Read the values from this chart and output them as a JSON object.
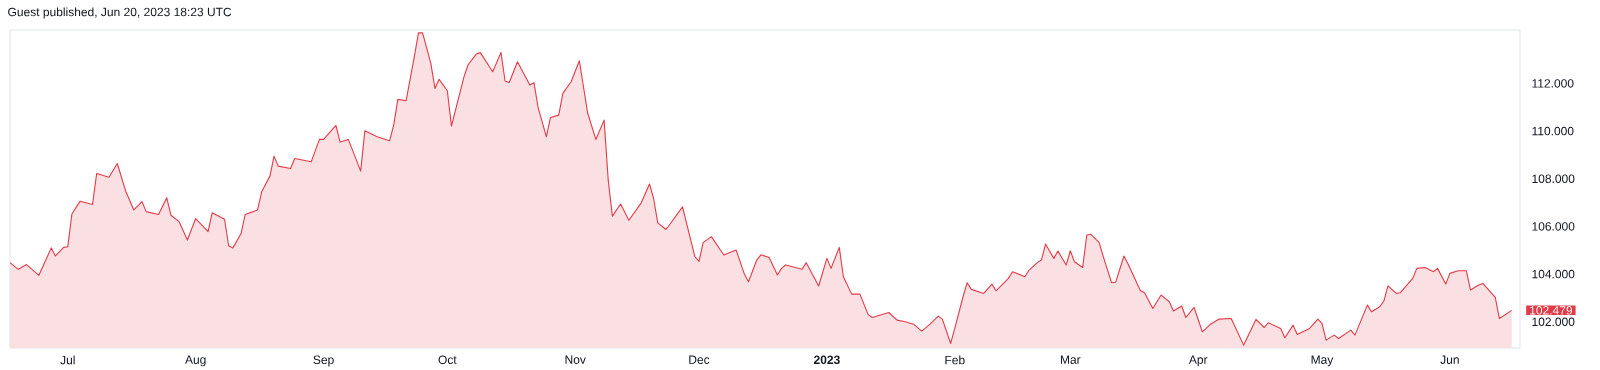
{
  "chart_data": {
    "type": "area",
    "title": "Guest published, Jun 20, 2023 18:23 UTC",
    "color": "#e23b48",
    "x": [
      "2022-06-17",
      "2022-06-19",
      "2022-06-21",
      "2022-06-24",
      "2022-06-27",
      "2022-06-28",
      "2022-06-30",
      "2022-07-01",
      "2022-07-02",
      "2022-07-04",
      "2022-07-07",
      "2022-07-08",
      "2022-07-11",
      "2022-07-13",
      "2022-07-15",
      "2022-07-17",
      "2022-07-19",
      "2022-07-20",
      "2022-07-23",
      "2022-07-25",
      "2022-07-26",
      "2022-07-28",
      "2022-07-30",
      "2022-08-01",
      "2022-08-04",
      "2022-08-05",
      "2022-08-08",
      "2022-08-09",
      "2022-08-10",
      "2022-08-12",
      "2022-08-13",
      "2022-08-16",
      "2022-08-17",
      "2022-08-19",
      "2022-08-20",
      "2022-08-21",
      "2022-08-24",
      "2022-08-25",
      "2022-08-29",
      "2022-08-31",
      "2022-09-01",
      "2022-09-04",
      "2022-09-05",
      "2022-09-07",
      "2022-09-10",
      "2022-09-11",
      "2022-09-14",
      "2022-09-17",
      "2022-09-18",
      "2022-09-19",
      "2022-09-21",
      "2022-09-23",
      "2022-09-24",
      "2022-09-25",
      "2022-09-27",
      "2022-09-28",
      "2022-09-29",
      "2022-10-01",
      "2022-10-02",
      "2022-10-05",
      "2022-10-06",
      "2022-10-08",
      "2022-10-09",
      "2022-10-12",
      "2022-10-14",
      "2022-10-15",
      "2022-10-16",
      "2022-10-18",
      "2022-10-21",
      "2022-10-22",
      "2022-10-23",
      "2022-10-25",
      "2022-10-26",
      "2022-10-28",
      "2022-10-29",
      "2022-10-31",
      "2022-11-02",
      "2022-11-04",
      "2022-11-05",
      "2022-11-06",
      "2022-11-08",
      "2022-11-09",
      "2022-11-10",
      "2022-11-12",
      "2022-11-14",
      "2022-11-17",
      "2022-11-19",
      "2022-11-20",
      "2022-11-21",
      "2022-11-23",
      "2022-11-24",
      "2022-11-27",
      "2022-11-30",
      "2022-12-01",
      "2022-12-02",
      "2022-12-04",
      "2022-12-07",
      "2022-12-10",
      "2022-12-12",
      "2022-12-13",
      "2022-12-15",
      "2022-12-16",
      "2022-12-18",
      "2022-12-20",
      "2022-12-21",
      "2022-12-22",
      "2022-12-26",
      "2022-12-27",
      "2022-12-30",
      "2023-01-01",
      "2023-01-02",
      "2023-01-04",
      "2023-01-05",
      "2023-01-07",
      "2023-01-09",
      "2023-01-11",
      "2023-01-12",
      "2023-01-16",
      "2023-01-18",
      "2023-01-20",
      "2023-01-22",
      "2023-01-24",
      "2023-01-26",
      "2023-01-28",
      "2023-01-29",
      "2023-01-31",
      "2023-02-01",
      "2023-02-03",
      "2023-02-04",
      "2023-02-05",
      "2023-02-08",
      "2023-02-10",
      "2023-02-11",
      "2023-02-14",
      "2023-02-15",
      "2023-02-18",
      "2023-02-19",
      "2023-02-21",
      "2023-02-22",
      "2023-02-23",
      "2023-02-25",
      "2023-02-26",
      "2023-02-28",
      "2023-03-01",
      "2023-03-02",
      "2023-03-04",
      "2023-03-05",
      "2023-03-06",
      "2023-03-08",
      "2023-03-09",
      "2023-03-11",
      "2023-03-12",
      "2023-03-14",
      "2023-03-15",
      "2023-03-18",
      "2023-03-19",
      "2023-03-21",
      "2023-03-23",
      "2023-03-25",
      "2023-03-26",
      "2023-03-28",
      "2023-03-29",
      "2023-03-31",
      "2023-04-02",
      "2023-04-04",
      "2023-04-06",
      "2023-04-09",
      "2023-04-12",
      "2023-04-15",
      "2023-04-17",
      "2023-04-18",
      "2023-04-21",
      "2023-04-22",
      "2023-04-24",
      "2023-04-25",
      "2023-04-28",
      "2023-04-30",
      "2023-05-01",
      "2023-05-02",
      "2023-05-04",
      "2023-05-05",
      "2023-05-08",
      "2023-05-09",
      "2023-05-12",
      "2023-05-13",
      "2023-05-15",
      "2023-05-16",
      "2023-05-17",
      "2023-05-19",
      "2023-05-20",
      "2023-05-23",
      "2023-05-24",
      "2023-05-26",
      "2023-05-28",
      "2023-05-29",
      "2023-05-31",
      "2023-06-01",
      "2023-06-03",
      "2023-06-05",
      "2023-06-06",
      "2023-06-08",
      "2023-06-09",
      "2023-06-12",
      "2023-06-13",
      "2023-06-16"
    ],
    "values": [
      104.48,
      104.2,
      104.4,
      103.95,
      105.1,
      104.76,
      105.12,
      105.15,
      106.52,
      107.06,
      106.92,
      108.22,
      108.06,
      108.64,
      107.5,
      106.69,
      107.04,
      106.62,
      106.5,
      107.2,
      106.47,
      106.2,
      105.43,
      106.33,
      105.78,
      106.57,
      106.3,
      105.19,
      105.09,
      105.7,
      106.5,
      106.69,
      107.45,
      108.11,
      108.95,
      108.53,
      108.43,
      108.85,
      108.71,
      109.65,
      109.65,
      110.24,
      109.54,
      109.65,
      108.32,
      110.01,
      109.76,
      109.59,
      110.25,
      111.33,
      111.27,
      113.12,
      114.12,
      114.12,
      112.84,
      111.79,
      112.17,
      111.69,
      110.21,
      112.25,
      112.77,
      113.23,
      113.29,
      112.49,
      113.3,
      112.1,
      112.04,
      112.91,
      111.93,
      112.03,
      110.99,
      109.76,
      110.57,
      110.67,
      111.58,
      112.07,
      112.95,
      110.77,
      110.21,
      109.65,
      110.46,
      107.94,
      106.43,
      106.94,
      106.26,
      106.99,
      107.78,
      107.17,
      106.15,
      105.87,
      106.1,
      106.82,
      104.73,
      104.53,
      105.32,
      105.57,
      104.8,
      105.01,
      104.0,
      103.68,
      104.59,
      104.81,
      104.7,
      103.96,
      104.24,
      104.38,
      104.2,
      104.48,
      103.5,
      104.66,
      104.24,
      105.12,
      103.89,
      103.16,
      103.16,
      102.3,
      102.18,
      102.39,
      102.07,
      102.0,
      101.9,
      101.61,
      101.9,
      102.24,
      102.1,
      101.09,
      101.72,
      103.05,
      103.64,
      103.36,
      103.19,
      103.58,
      103.3,
      103.82,
      104.1,
      103.89,
      104.17,
      104.48,
      104.59,
      105.26,
      104.66,
      104.97,
      104.38,
      104.98,
      104.52,
      104.28,
      105.64,
      105.67,
      105.32,
      104.73,
      103.64,
      103.66,
      104.76,
      104.42,
      103.3,
      103.22,
      102.56,
      103.12,
      102.84,
      102.45,
      102.66,
      102.18,
      102.6,
      101.58,
      101.9,
      102.11,
      102.14,
      101.02,
      102.1,
      101.76,
      101.96,
      101.72,
      101.33,
      101.86,
      101.47,
      101.72,
      102.11,
      101.93,
      101.23,
      101.44,
      101.3,
      101.65,
      101.44,
      102.7,
      102.42,
      102.63,
      102.87,
      103.51,
      103.19,
      103.22,
      103.82,
      104.24,
      104.28,
      104.1,
      104.24,
      103.58,
      104.03,
      104.14,
      104.14,
      103.33,
      103.54,
      103.61,
      103.02,
      102.14,
      102.479
    ],
    "xlim": [
      "2022-06-17",
      "2023-06-18"
    ],
    "xticks": [
      {
        "value": "2022-07-01",
        "label": "Jul"
      },
      {
        "value": "2022-08-01",
        "label": "Aug"
      },
      {
        "value": "2022-09-01",
        "label": "Sep"
      },
      {
        "value": "2022-10-01",
        "label": "Oct"
      },
      {
        "value": "2022-11-01",
        "label": "Nov"
      },
      {
        "value": "2022-12-01",
        "label": "Dec"
      },
      {
        "value": "2023-01-01",
        "label": "2023"
      },
      {
        "value": "2023-02-01",
        "label": "Feb"
      },
      {
        "value": "2023-03-01",
        "label": "Mar"
      },
      {
        "value": "2023-04-01",
        "label": "Apr"
      },
      {
        "value": "2023-05-01",
        "label": "May"
      },
      {
        "value": "2023-06-01",
        "label": "Jun"
      }
    ],
    "ylim": [
      100.9,
      114.24
    ],
    "yticks": [
      {
        "value": 102,
        "label": "102.000"
      },
      {
        "value": 104,
        "label": "104.000"
      },
      {
        "value": 106,
        "label": "106.000"
      },
      {
        "value": 108,
        "label": "108.000"
      },
      {
        "value": 110,
        "label": "110.000"
      },
      {
        "value": 112,
        "label": "112.000"
      }
    ],
    "annotations": [
      {
        "text": "102.479",
        "x": "2023-06-16",
        "y": 102.479
      }
    ]
  }
}
